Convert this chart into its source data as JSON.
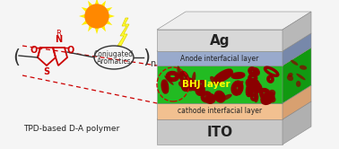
{
  "bg_color": "#f5f5f5",
  "layers": {
    "ITO": {
      "label": "ITO",
      "front": "#c8c8c8",
      "top": "#e0e0e0",
      "side": "#b0b0b0"
    },
    "cathode": {
      "label": "cathode interfacial layer",
      "front": "#f2c090",
      "top": "#f8d8b0",
      "side": "#d8a070"
    },
    "BHJ": {
      "label": "BHJ layer",
      "front": "#22bb22",
      "top": "#44dd44",
      "side": "#118811"
    },
    "anode": {
      "label": "Anode interfacial layer",
      "front": "#99aacc",
      "top": "#bbccee",
      "side": "#7788aa"
    },
    "Ag": {
      "label": "Ag",
      "front": "#d8d8d8",
      "top": "#eeeeee",
      "side": "#b8b8b8"
    }
  },
  "sun_color": "#ff8800",
  "sun_inner": "#ff6600",
  "ray_color": "#ffee00",
  "lightning_color": "#ffff33",
  "lightning_edge": "#ddcc00",
  "chemical_color": "#cc0000",
  "bhj_swirl": "#8b0000",
  "dashed_color": "#cc0000",
  "polymer_label": "TPD-based D-A polymer",
  "conj_label1": "Conjugated",
  "conj_label2": "Aromatics",
  "label_n": "n",
  "atom_R": "R",
  "atom_N": "N",
  "atom_S": "S",
  "atom_O1": "O",
  "atom_O2": "O",
  "text_color": "#222222",
  "bhj_label_color": "#ffff00"
}
